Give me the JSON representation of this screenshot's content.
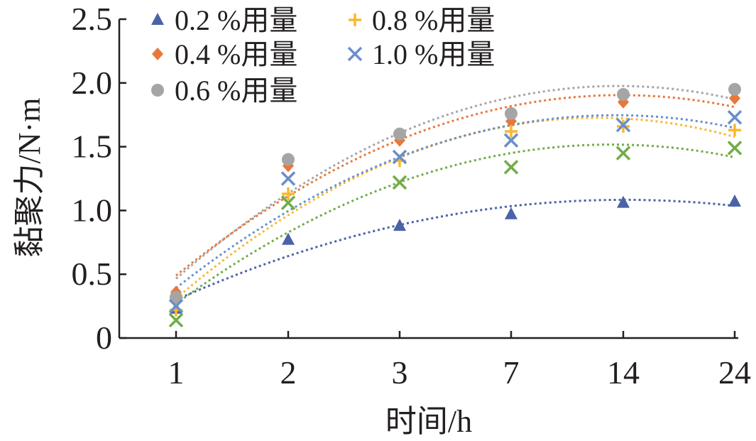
{
  "chart_data": {
    "type": "scatter",
    "title": "",
    "xlabel": "时间/h",
    "ylabel": "黏聚力/N·m",
    "categories": [
      "1",
      "2",
      "3",
      "7",
      "14",
      "24"
    ],
    "yticks": [
      "0",
      "0.5",
      "1.0",
      "1.5",
      "2.0",
      "2.5"
    ],
    "ylim": [
      0,
      2.5
    ],
    "legend_position": "top-left",
    "trendlines": "dotted polynomial fit per series",
    "series": [
      {
        "name": "0.2 %用量",
        "marker": "triangle",
        "color": "#4a62a8",
        "values": [
          0.23,
          0.77,
          0.88,
          0.97,
          1.06,
          1.07
        ]
      },
      {
        "name": "0.4 %用量",
        "marker": "diamond",
        "color": "#e8783a",
        "values": [
          0.36,
          1.35,
          1.55,
          1.7,
          1.85,
          1.88
        ]
      },
      {
        "name": "0.6 %用量",
        "marker": "circle",
        "color": "#a5a5a5",
        "values": [
          0.32,
          1.4,
          1.6,
          1.76,
          1.91,
          1.95
        ]
      },
      {
        "name": "0.8 %用量",
        "marker": "plus",
        "color": "#f9b92e",
        "values": [
          0.22,
          1.13,
          1.39,
          1.62,
          1.66,
          1.63
        ]
      },
      {
        "name": "1.0 %用量",
        "marker": "x",
        "color": "#6a8fc8",
        "values": [
          0.25,
          1.25,
          1.42,
          1.55,
          1.67,
          1.73
        ]
      },
      {
        "name": "",
        "marker": "x",
        "color": "#70ad47",
        "values": [
          0.14,
          1.06,
          1.22,
          1.34,
          1.45,
          1.49
        ]
      }
    ]
  }
}
